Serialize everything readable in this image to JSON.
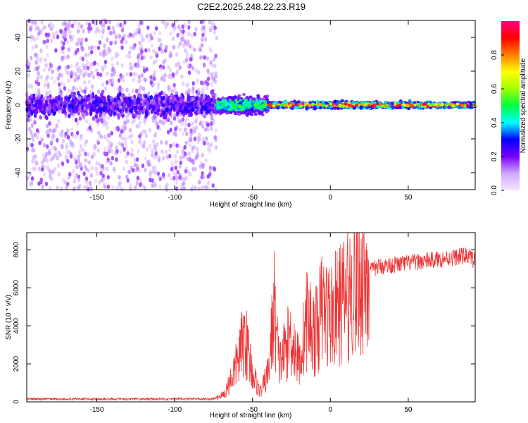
{
  "title": "C2E2.2025.248.22.23.R19",
  "chart_data": [
    {
      "type": "heatmap",
      "name": "spectrogram",
      "xlabel": "Height of straight line (km)",
      "ylabel": "Frequency (Hz)",
      "xlim": [
        -195,
        93
      ],
      "ylim": [
        -50,
        50
      ],
      "x_ticks": [
        -150,
        -100,
        -50,
        0,
        50
      ],
      "y_ticks": [
        -40,
        -20,
        0,
        20,
        40
      ],
      "colorbar": {
        "label": "Normalized spectral amplitude",
        "range": [
          0.0,
          1.0
        ],
        "ticks": [
          "0.0",
          "0.2",
          "0.4",
          "0.6",
          "0.8"
        ],
        "colors": [
          "#f0e8ff",
          "#cfa8ff",
          "#7a00ff",
          "#0000ff",
          "#00ffff",
          "#00ff40",
          "#a0ff00",
          "#ffff00",
          "#ff8000",
          "#ff0000",
          "#ff0080"
        ]
      },
      "description_regions": [
        {
          "x_range": [
            -195,
            -73
          ],
          "freq_spread": 50,
          "amplitude": [
            0.1,
            0.3
          ]
        },
        {
          "x_range": [
            -73,
            -40
          ],
          "freq_spread": 8,
          "amplitude": [
            0.3,
            0.55
          ]
        },
        {
          "x_range": [
            -40,
            93
          ],
          "freq_spread": 3,
          "amplitude": [
            0.5,
            1.0
          ]
        }
      ]
    },
    {
      "type": "line",
      "name": "snr",
      "xlabel": "Height of straight line (km)",
      "ylabel": "SNR (10 * v/v)",
      "xlim": [
        -195,
        93
      ],
      "ylim": [
        0,
        8900
      ],
      "x_ticks": [
        -150,
        -100,
        -50,
        0,
        50
      ],
      "y_ticks": [
        0,
        2000,
        4000,
        6000,
        8000
      ],
      "color": "#ee3333",
      "key_points": [
        {
          "x": -195,
          "y": 150
        },
        {
          "x": -100,
          "y": 150
        },
        {
          "x": -75,
          "y": 150
        },
        {
          "x": -68,
          "y": 400
        },
        {
          "x": -60,
          "y": 2000
        },
        {
          "x": -55,
          "y": 3500
        },
        {
          "x": -50,
          "y": 1500
        },
        {
          "x": -45,
          "y": 500
        },
        {
          "x": -40,
          "y": 1500
        },
        {
          "x": -36,
          "y": 5000
        },
        {
          "x": -33,
          "y": 2000
        },
        {
          "x": -25,
          "y": 3500
        },
        {
          "x": -20,
          "y": 2000
        },
        {
          "x": -15,
          "y": 4500
        },
        {
          "x": -10,
          "y": 3500
        },
        {
          "x": -5,
          "y": 5000
        },
        {
          "x": 0,
          "y": 4500
        },
        {
          "x": 10,
          "y": 5500
        },
        {
          "x": 20,
          "y": 6500
        },
        {
          "x": 30,
          "y": 7100
        },
        {
          "x": 40,
          "y": 7200
        },
        {
          "x": 50,
          "y": 7300
        },
        {
          "x": 60,
          "y": 7400
        },
        {
          "x": 70,
          "y": 7500
        },
        {
          "x": 80,
          "y": 7600
        },
        {
          "x": 88,
          "y": 7700
        },
        {
          "x": 93,
          "y": 7400
        }
      ]
    }
  ]
}
